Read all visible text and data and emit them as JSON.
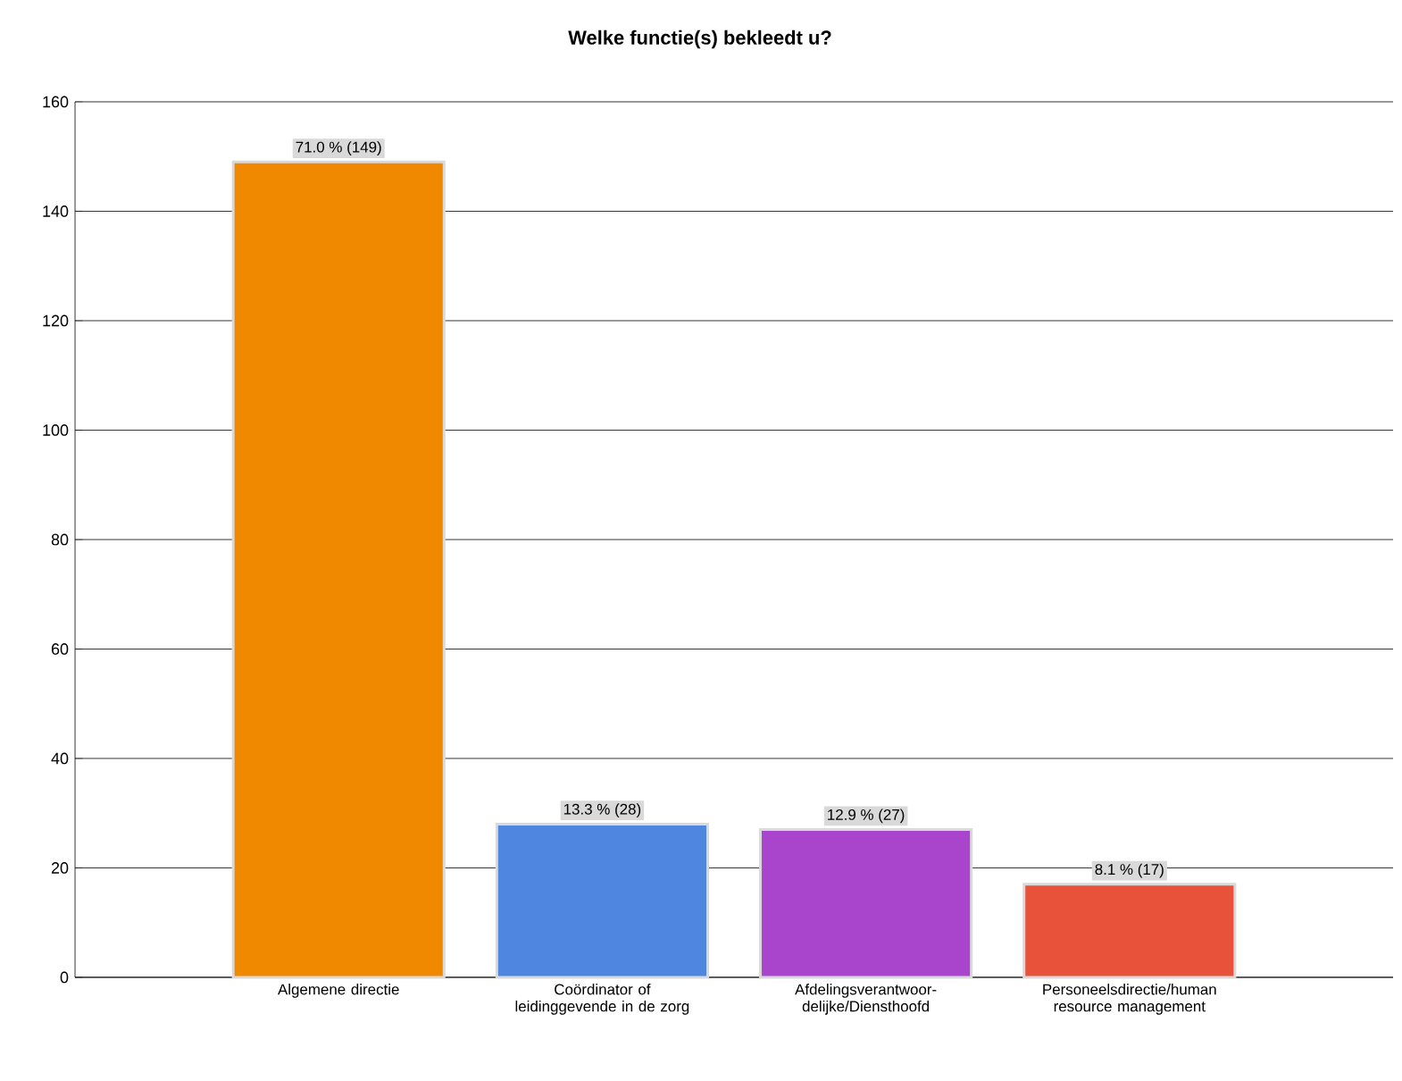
{
  "chart_data": {
    "type": "bar",
    "title": "Welke functie(s) bekleedt u?",
    "categories": [
      "Algemene directie",
      "Coördinator of leidinggevende in de zorg",
      "Afdelingsverantwoor-delijke/Diensthoofd",
      "Personeelsdirectie/human resource management"
    ],
    "values": [
      149,
      28,
      27,
      17
    ],
    "colors": [
      "#f08800",
      "#4f86e0",
      "#a845cc",
      "#e8523a"
    ],
    "value_labels": [
      "71.0 % (149)",
      "13.3 % (28)",
      "12.9 % (27)",
      "8.1 % (17)"
    ],
    "ylim": [
      0,
      160
    ],
    "yticks": [
      0,
      20,
      40,
      60,
      80,
      100,
      120,
      140,
      160
    ],
    "grid": "y"
  }
}
